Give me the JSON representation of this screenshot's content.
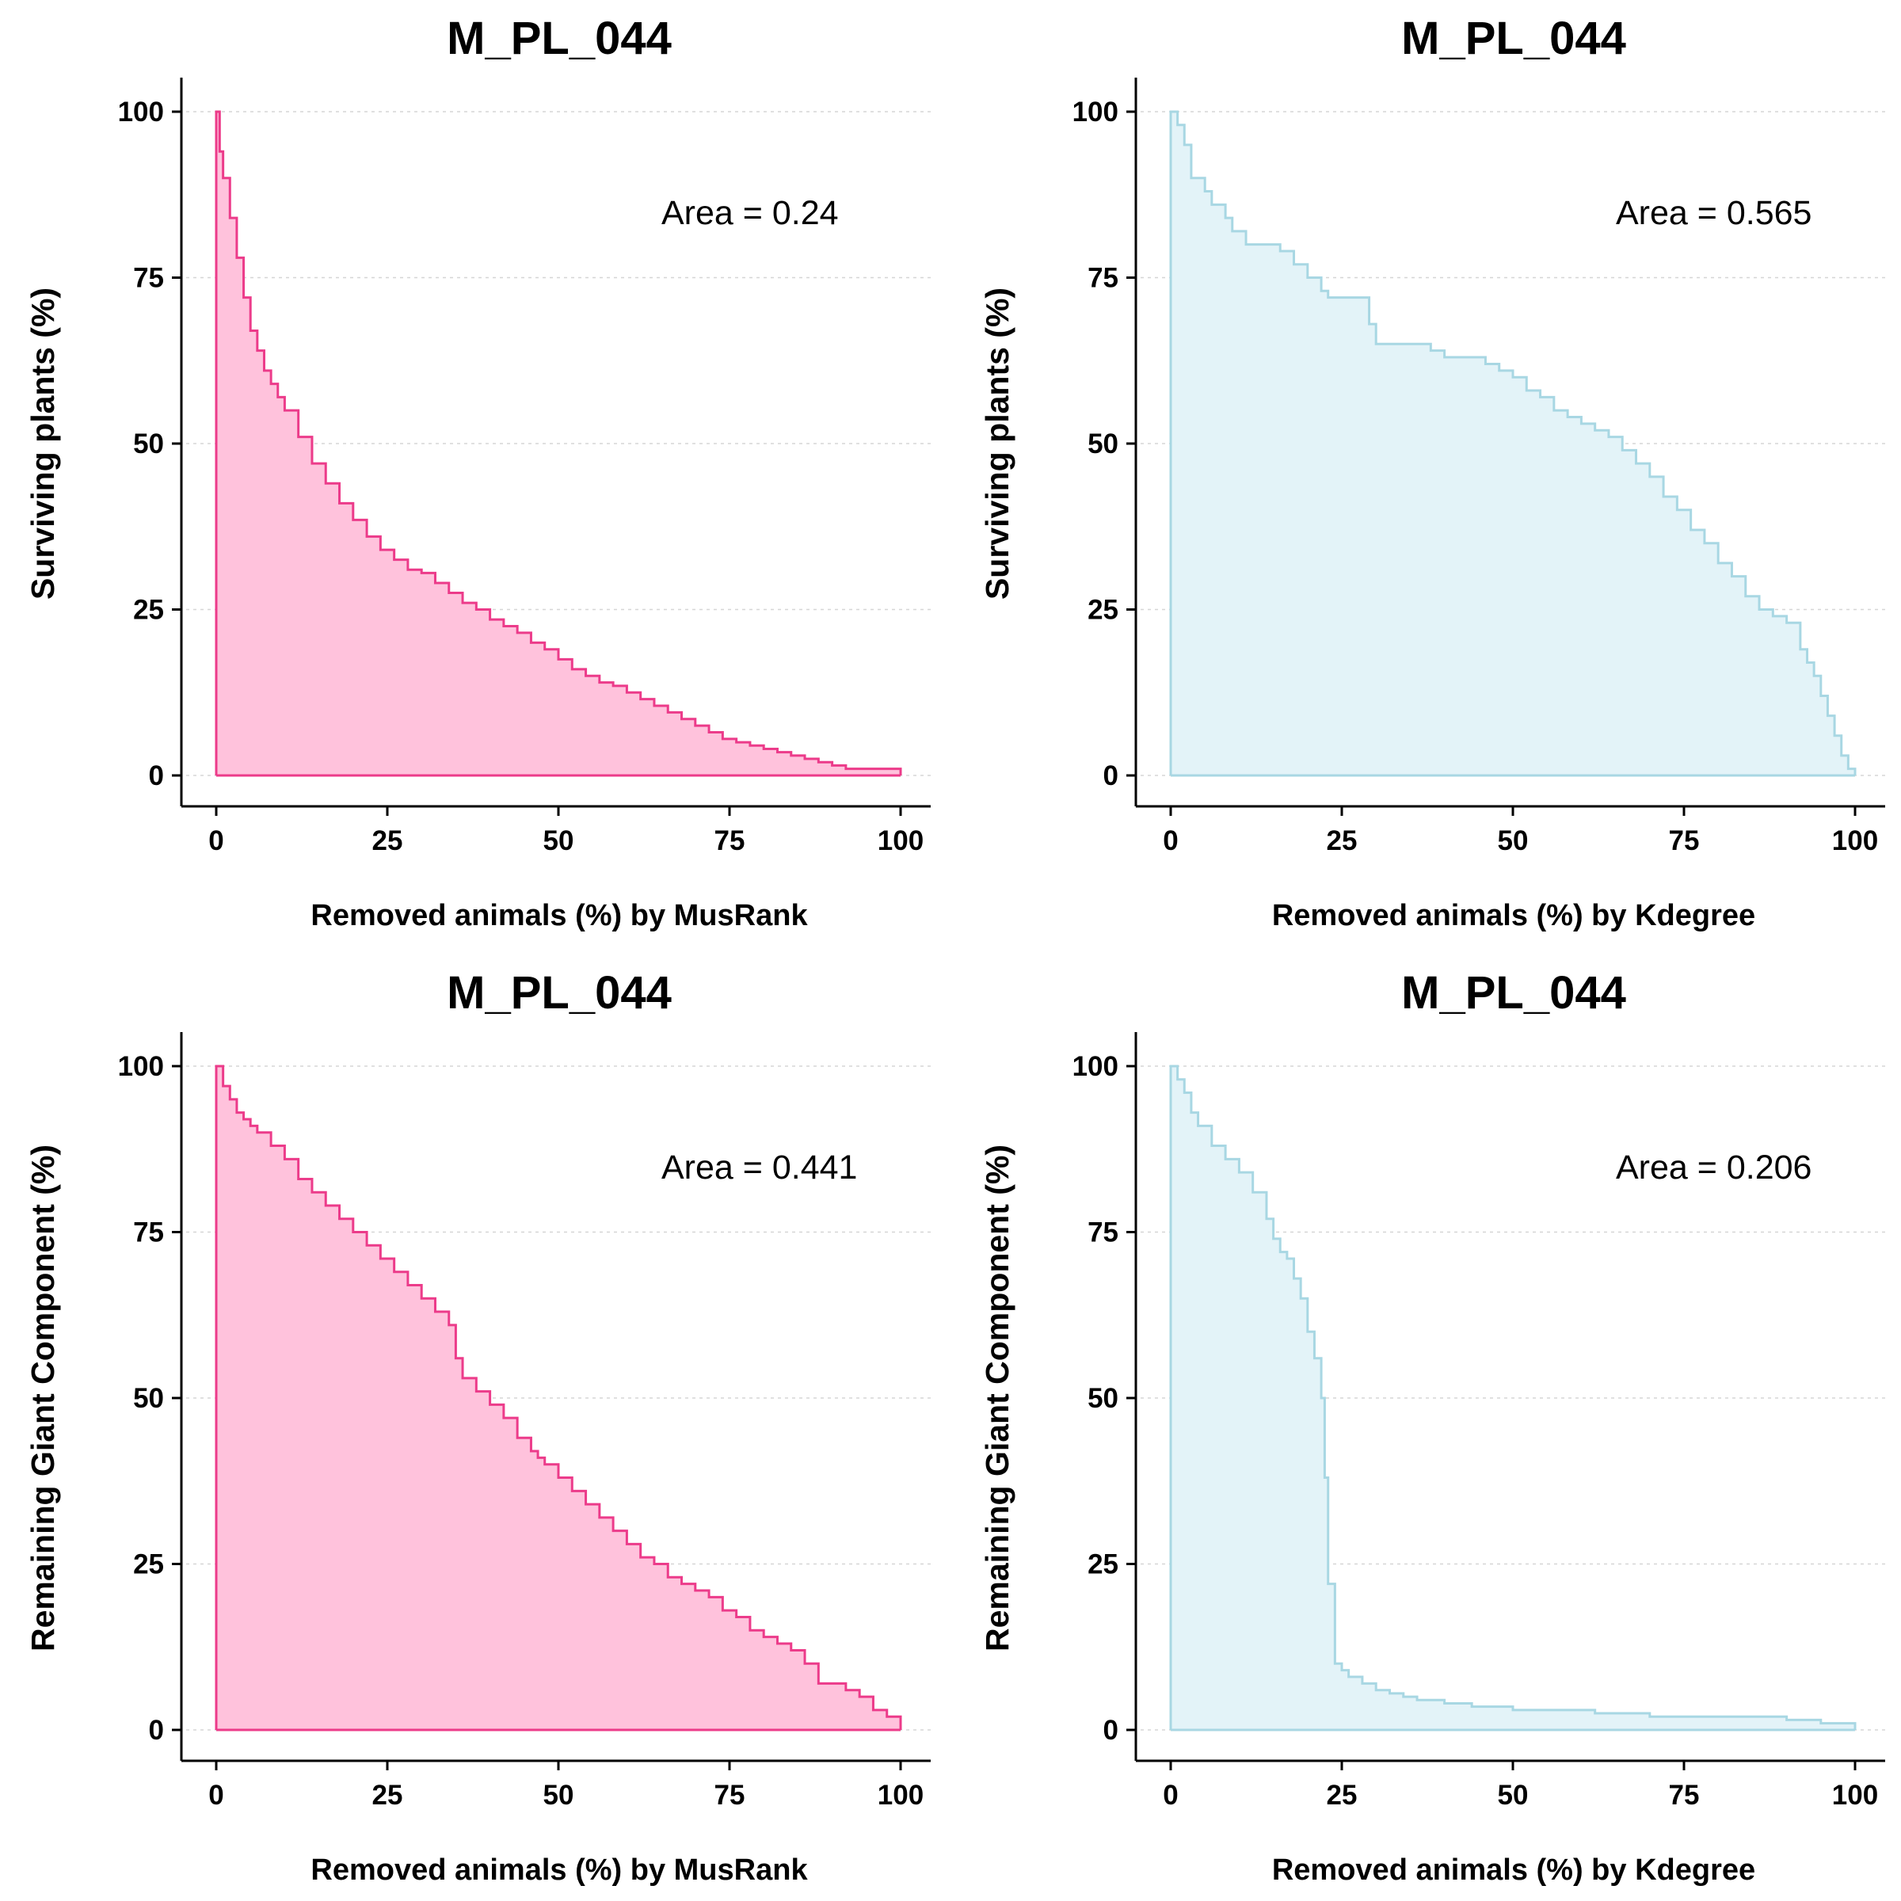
{
  "colors": {
    "musrank_fill": "#ffc2dc",
    "musrank_line": "#ec3b8a",
    "kdegree_fill": "#e3f3f8",
    "kdegree_line": "#a8d7e3"
  },
  "chart_data": [
    {
      "type": "area",
      "title": "M_PL_044",
      "xlabel": "Removed animals (%) by MusRank",
      "ylabel": "Surviving plants (%)",
      "xlim": [
        0,
        100
      ],
      "ylim": [
        0,
        100
      ],
      "xticks": [
        "0",
        "25",
        "50",
        "75",
        "100"
      ],
      "yticks": [
        "0",
        "25",
        "50",
        "75",
        "100"
      ],
      "annotation": "Area = 0.24",
      "grid": "horizontal dashed",
      "fill": "#ffc2dc",
      "stroke": "#ec3b8a",
      "x": [
        0,
        0.5,
        1,
        2,
        3,
        4,
        5,
        6,
        7,
        8,
        9,
        10,
        12,
        14,
        16,
        18,
        20,
        22,
        24,
        26,
        28,
        30,
        32,
        34,
        36,
        38,
        40,
        42,
        44,
        46,
        48,
        50,
        52,
        54,
        56,
        58,
        60,
        62,
        64,
        66,
        68,
        70,
        72,
        74,
        76,
        78,
        80,
        82,
        84,
        86,
        88,
        90,
        92,
        94,
        96,
        98,
        100
      ],
      "y": [
        100,
        94,
        90,
        84,
        78,
        72,
        67,
        64,
        61,
        59,
        57,
        55,
        51,
        47,
        44,
        41,
        38.5,
        36,
        34,
        32.5,
        31,
        30.5,
        29,
        27.5,
        26,
        25,
        23.5,
        22.5,
        21.5,
        20,
        19,
        17.5,
        16,
        15,
        14,
        13.5,
        12.5,
        11.5,
        10.5,
        9.5,
        8.5,
        7.5,
        6.5,
        5.5,
        5,
        4.5,
        4,
        3.5,
        3,
        2.5,
        2,
        1.5,
        1,
        1,
        1,
        1,
        0
      ]
    },
    {
      "type": "area",
      "title": "M_PL_044",
      "xlabel": "Removed animals (%) by Kdegree",
      "ylabel": "Surviving plants (%)",
      "xlim": [
        0,
        100
      ],
      "ylim": [
        0,
        100
      ],
      "xticks": [
        "0",
        "25",
        "50",
        "75",
        "100"
      ],
      "yticks": [
        "0",
        "25",
        "50",
        "75",
        "100"
      ],
      "annotation": "Area = 0.565",
      "grid": "horizontal dashed",
      "fill": "#e3f3f8",
      "stroke": "#a8d7e3",
      "x": [
        0,
        1,
        2,
        3,
        5,
        6,
        8,
        9,
        11,
        16,
        18,
        20,
        22,
        23,
        24,
        26,
        28,
        29,
        30,
        35,
        38,
        40,
        42,
        46,
        48,
        50,
        52,
        54,
        56,
        58,
        60,
        62,
        64,
        66,
        68,
        70,
        72,
        74,
        76,
        78,
        80,
        82,
        84,
        86,
        88,
        90,
        92,
        93,
        94,
        95,
        96,
        97,
        98,
        99,
        100
      ],
      "y": [
        100,
        98,
        95,
        90,
        88,
        86,
        84,
        82,
        80,
        79,
        77,
        75,
        73,
        72,
        72,
        72,
        72,
        68,
        65,
        65,
        64,
        63,
        63,
        62,
        61,
        60,
        58,
        57,
        55,
        54,
        53,
        52,
        51,
        49,
        47,
        45,
        42,
        40,
        37,
        35,
        32,
        30,
        27,
        25,
        24,
        23,
        19,
        17,
        15,
        12,
        9,
        6,
        3,
        1,
        0
      ]
    },
    {
      "type": "area",
      "title": "M_PL_044",
      "xlabel": "Removed animals (%) by MusRank",
      "ylabel": "Remaining Giant Component (%)",
      "xlim": [
        0,
        100
      ],
      "ylim": [
        0,
        100
      ],
      "xticks": [
        "0",
        "25",
        "50",
        "75",
        "100"
      ],
      "yticks": [
        "0",
        "25",
        "50",
        "75",
        "100"
      ],
      "annotation": "Area = 0.441",
      "grid": "horizontal dashed",
      "fill": "#ffc2dc",
      "stroke": "#ec3b8a",
      "x": [
        0,
        1,
        2,
        3,
        4,
        5,
        6,
        8,
        10,
        12,
        14,
        16,
        18,
        20,
        22,
        24,
        26,
        28,
        30,
        32,
        34,
        35,
        36,
        38,
        40,
        42,
        44,
        46,
        47,
        48,
        50,
        52,
        54,
        56,
        58,
        60,
        62,
        64,
        66,
        68,
        70,
        72,
        74,
        76,
        78,
        80,
        82,
        84,
        86,
        88,
        90,
        92,
        94,
        96,
        98,
        100
      ],
      "y": [
        100,
        97,
        95,
        93,
        92,
        91,
        90,
        88,
        86,
        83,
        81,
        79,
        77,
        75,
        73,
        71,
        69,
        67,
        65,
        63,
        61,
        56,
        53,
        51,
        49,
        47,
        44,
        42,
        41,
        40,
        38,
        36,
        34,
        32,
        30,
        28,
        26,
        25,
        23,
        22,
        21,
        20,
        18,
        17,
        15,
        14,
        13,
        12,
        10,
        7,
        7,
        6,
        5,
        3,
        2,
        0
      ]
    },
    {
      "type": "area",
      "title": "M_PL_044",
      "xlabel": "Removed animals (%) by Kdegree",
      "ylabel": "Remaining Giant Component (%)",
      "xlim": [
        0,
        100
      ],
      "ylim": [
        0,
        100
      ],
      "xticks": [
        "0",
        "25",
        "50",
        "75",
        "100"
      ],
      "yticks": [
        "0",
        "25",
        "50",
        "75",
        "100"
      ],
      "annotation": "Area = 0.206",
      "grid": "horizontal dashed",
      "fill": "#e3f3f8",
      "stroke": "#a8d7e3",
      "x": [
        0,
        1,
        2,
        3,
        4,
        6,
        8,
        10,
        12,
        14,
        15,
        16,
        17,
        18,
        19,
        20,
        21,
        22,
        22.5,
        23,
        24,
        25,
        26,
        28,
        30,
        32,
        34,
        36,
        40,
        44,
        50,
        56,
        62,
        70,
        80,
        90,
        95,
        100
      ],
      "y": [
        100,
        98,
        96,
        93,
        91,
        88,
        86,
        84,
        81,
        77,
        74,
        72,
        71,
        68,
        65,
        60,
        56,
        50,
        38,
        22,
        10,
        9,
        8,
        7,
        6,
        5.5,
        5,
        4.5,
        4,
        3.5,
        3,
        3,
        2.5,
        2,
        2,
        1.5,
        1,
        0
      ]
    }
  ]
}
